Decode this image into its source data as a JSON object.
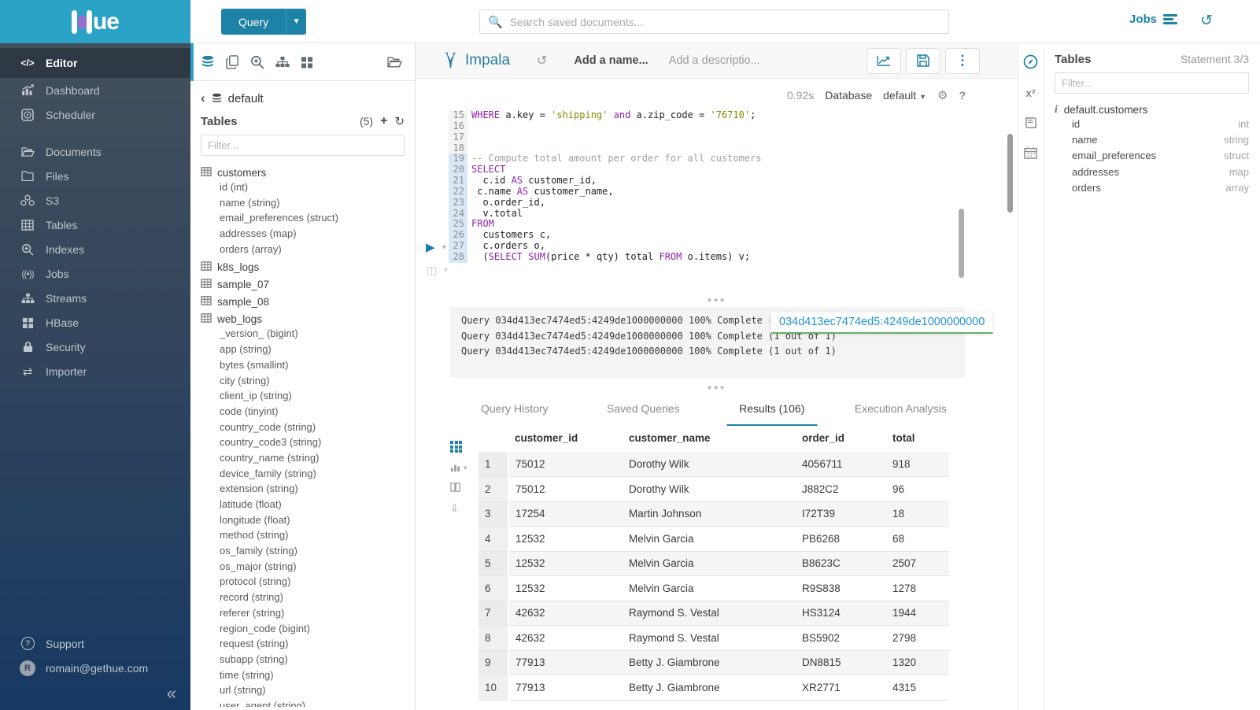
{
  "brand": {
    "logo_text": "ue"
  },
  "topbar": {
    "query_button": "Query",
    "search_placeholder": "Search saved documents...",
    "jobs_label": "Jobs"
  },
  "left_nav": {
    "items": [
      {
        "icon": "code",
        "label": "Editor",
        "active": true
      },
      {
        "icon": "dashboard",
        "label": "Dashboard"
      },
      {
        "icon": "scheduler",
        "label": "Scheduler"
      },
      {
        "gap": true
      },
      {
        "icon": "folder-open",
        "label": "Documents"
      },
      {
        "icon": "folder",
        "label": "Files"
      },
      {
        "icon": "cubes",
        "label": "S3"
      },
      {
        "icon": "table",
        "label": "Tables"
      },
      {
        "icon": "zoom",
        "label": "Indexes"
      },
      {
        "icon": "broadcast",
        "label": "Jobs"
      },
      {
        "icon": "sitemap",
        "label": "Streams"
      },
      {
        "icon": "grid4",
        "label": "HBase"
      },
      {
        "icon": "lock",
        "label": "Security"
      },
      {
        "icon": "exchange",
        "label": "Importer"
      }
    ],
    "footer": [
      {
        "icon": "question",
        "label": "Support"
      },
      {
        "icon": "avatar",
        "label": "romain@gethue.com",
        "avatar_letter": "R"
      }
    ],
    "collapse_icon": "«"
  },
  "assist": {
    "database": "default",
    "tables_label": "Tables",
    "count": "(5)",
    "filter_placeholder": "Filter...",
    "tree": [
      {
        "name": "customers",
        "columns": [
          "id (int)",
          "name (string)",
          "email_preferences (struct)",
          "addresses (map)",
          "orders (array)"
        ]
      },
      {
        "name": "k8s_logs",
        "columns": []
      },
      {
        "name": "sample_07",
        "columns": []
      },
      {
        "name": "sample_08",
        "columns": []
      },
      {
        "name": "web_logs",
        "columns": [
          "_version_ (bigint)",
          "app (string)",
          "bytes (smallint)",
          "city (string)",
          "client_ip (string)",
          "code (tinyint)",
          "country_code (string)",
          "country_code3 (string)",
          "country_name (string)",
          "device_family (string)",
          "extension (string)",
          "latitude (float)",
          "longitude (float)",
          "method (string)",
          "os_family (string)",
          "os_major (string)",
          "protocol (string)",
          "record (string)",
          "referer (string)",
          "region_code (bigint)",
          "request (string)",
          "subapp (string)",
          "time (string)",
          "url (string)",
          "user_agent (string)"
        ]
      }
    ]
  },
  "editor": {
    "engine": "Impala",
    "name_placeholder": "Add a name...",
    "desc_placeholder": "Add a descriptio...",
    "duration": "0.92s",
    "database_label": "Database",
    "database_value": "default",
    "code_lines": [
      {
        "n": 15,
        "active": false,
        "seg": [
          [
            "k",
            "WHERE"
          ],
          [
            "p",
            " a.key = "
          ],
          [
            "s",
            "'shipping'"
          ],
          [
            "p",
            " "
          ],
          [
            "k",
            "and"
          ],
          [
            "p",
            " a.zip_code = "
          ],
          [
            "s",
            "'76710'"
          ],
          [
            "p",
            ";"
          ]
        ]
      },
      {
        "n": 16,
        "active": false,
        "seg": []
      },
      {
        "n": 17,
        "active": false,
        "seg": []
      },
      {
        "n": 18,
        "active": false,
        "seg": []
      },
      {
        "n": 19,
        "active": true,
        "seg": [
          [
            "c",
            "-- Compute total amount per order for all customers"
          ]
        ]
      },
      {
        "n": 20,
        "active": true,
        "seg": [
          [
            "k",
            "SELECT"
          ]
        ]
      },
      {
        "n": 21,
        "active": true,
        "seg": [
          [
            "p",
            "  c.id "
          ],
          [
            "k",
            "AS"
          ],
          [
            "p",
            " customer_id,"
          ]
        ]
      },
      {
        "n": 22,
        "active": true,
        "seg": [
          [
            "p",
            " c.name "
          ],
          [
            "k",
            "AS"
          ],
          [
            "p",
            " customer_name,"
          ]
        ]
      },
      {
        "n": 23,
        "active": true,
        "seg": [
          [
            "p",
            "  o.order_id,"
          ]
        ]
      },
      {
        "n": 24,
        "active": true,
        "seg": [
          [
            "p",
            "  v.total"
          ]
        ]
      },
      {
        "n": 25,
        "active": true,
        "seg": [
          [
            "k",
            "FROM"
          ]
        ]
      },
      {
        "n": 26,
        "active": true,
        "seg": [
          [
            "p",
            "  customers c,"
          ]
        ]
      },
      {
        "n": 27,
        "active": true,
        "seg": [
          [
            "p",
            "  c.orders o,"
          ]
        ]
      },
      {
        "n": 28,
        "active": true,
        "seg": [
          [
            "p",
            "  ("
          ],
          [
            "k",
            "SELECT"
          ],
          [
            "p",
            " "
          ],
          [
            "k",
            "SUM"
          ],
          [
            "p",
            "(price * qty) total "
          ],
          [
            "k",
            "FROM"
          ],
          [
            "p",
            " o.items) v;"
          ]
        ]
      }
    ],
    "log_lines": [
      "Query 034d413ec7474ed5:4249de1000000000 100% Complete (1 out of 1)",
      "Query 034d413ec7474ed5:4249de1000000000 100% Complete (1 out of 1)",
      "Query 034d413ec7474ed5:4249de1000000000 100% Complete (1 out of 1)"
    ],
    "job_tooltip": "034d413ec7474ed5:4249de1000000000"
  },
  "result_tabs": [
    {
      "label": "Query History",
      "active": false
    },
    {
      "label": "Saved Queries",
      "active": false
    },
    {
      "label": "Results (106)",
      "active": true
    },
    {
      "label": "Execution Analysis",
      "active": false
    }
  ],
  "results": {
    "headers": [
      "customer_id",
      "customer_name",
      "order_id",
      "total"
    ],
    "rows": [
      [
        "1",
        "75012",
        "Dorothy Wilk",
        "4056711",
        "918"
      ],
      [
        "2",
        "75012",
        "Dorothy Wilk",
        "J882C2",
        "96"
      ],
      [
        "3",
        "17254",
        "Martin Johnson",
        "I72T39",
        "18"
      ],
      [
        "4",
        "12532",
        "Melvin Garcia",
        "PB6268",
        "68"
      ],
      [
        "5",
        "12532",
        "Melvin Garcia",
        "B8623C",
        "2507"
      ],
      [
        "6",
        "12532",
        "Melvin Garcia",
        "R9S838",
        "1278"
      ],
      [
        "7",
        "42632",
        "Raymond S. Vestal",
        "HS3124",
        "1944"
      ],
      [
        "8",
        "42632",
        "Raymond S. Vestal",
        "BS5902",
        "2798"
      ],
      [
        "9",
        "77913",
        "Betty J. Giambrone",
        "DN8815",
        "1320"
      ],
      [
        "10",
        "77913",
        "Betty J. Giambrone",
        "XR2771",
        "4315"
      ]
    ]
  },
  "right_panel": {
    "title": "Tables",
    "statement": "Statement 3/3",
    "filter_placeholder": "Filter...",
    "table_name": "default.customers",
    "columns": [
      {
        "name": "id",
        "type": "int"
      },
      {
        "name": "name",
        "type": "string"
      },
      {
        "name": "email_preferences",
        "type": "struct"
      },
      {
        "name": "addresses",
        "type": "map"
      },
      {
        "name": "orders",
        "type": "array"
      }
    ]
  },
  "colors": {
    "accent": "#1d82a5",
    "header": "#2ba3c7",
    "keyword": "#8e24aa",
    "string": "#7f8c00",
    "link": "#2196d3",
    "link_underline": "#67b168"
  }
}
